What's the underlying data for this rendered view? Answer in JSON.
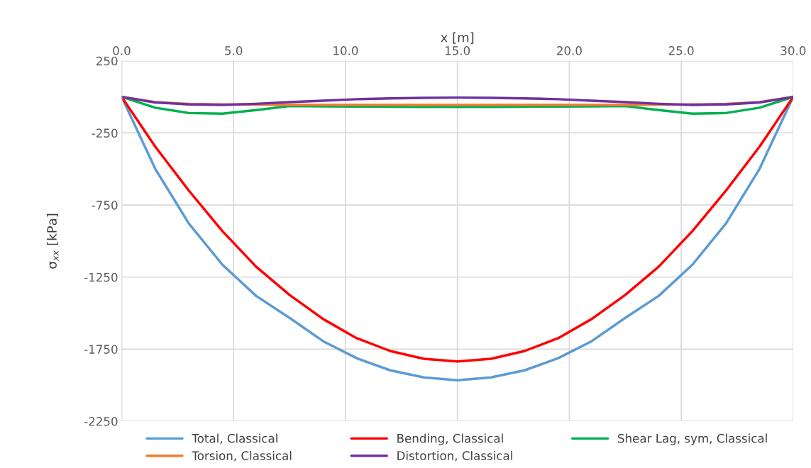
{
  "chart_data": {
    "type": "line",
    "xlabel": "x [m]",
    "ylabel": "σ$_{xx}$ [kPa]",
    "x": [
      0,
      1.5,
      3,
      4.5,
      6,
      7.5,
      9,
      10.5,
      12,
      13.5,
      15,
      16.5,
      18,
      19.5,
      21,
      22.5,
      24,
      25.5,
      27,
      28.5,
      30
    ],
    "series": [
      {
        "name": "Total, Classical",
        "color": "#5b9bd5",
        "values": [
          0,
          -499,
          -878,
          -1164,
          -1380,
          -1533,
          -1695,
          -1813,
          -1897,
          -1946,
          -1966,
          -1946,
          -1897,
          -1813,
          -1695,
          -1533,
          -1380,
          -1164,
          -878,
          -499,
          0
        ]
      },
      {
        "name": "Bending, Classical",
        "color": "#ff0000",
        "values": [
          0,
          -345,
          -650,
          -931,
          -1177,
          -1374,
          -1541,
          -1674,
          -1763,
          -1817,
          -1836,
          -1817,
          -1763,
          -1674,
          -1541,
          -1374,
          -1177,
          -931,
          -650,
          -345,
          0
        ]
      },
      {
        "name": "Shear Lag, sym, Classical",
        "color": "#00b050",
        "values": [
          0,
          -75,
          -112,
          -116,
          -92,
          -64,
          -66,
          -67,
          -68,
          -69,
          -70,
          -69,
          -68,
          -67,
          -66,
          -64,
          -92,
          -116,
          -112,
          -75,
          0
        ]
      },
      {
        "name": "Torsion, Classical",
        "color": "#ed7d31",
        "values": [
          0,
          -36,
          -49,
          -52,
          -54,
          -56,
          -56,
          -56,
          -56,
          -56,
          -56,
          -56,
          -56,
          -56,
          -56,
          -56,
          -54,
          -52,
          -49,
          -36,
          0
        ]
      },
      {
        "name": "Distortion, Classical",
        "color": "#7030a0",
        "values": [
          0,
          -39,
          -52,
          -56,
          -48,
          -36,
          -26,
          -16,
          -10,
          -7,
          -5,
          -7,
          -10,
          -16,
          -26,
          -36,
          -48,
          -56,
          -52,
          -39,
          0
        ]
      }
    ],
    "xlim": [
      0,
      30
    ],
    "xticks": [
      {
        "value": 0,
        "label": "0.0"
      },
      {
        "value": 5,
        "label": "5.0"
      },
      {
        "value": 10,
        "label": "10.0"
      },
      {
        "value": 15,
        "label": "15.0"
      },
      {
        "value": 20,
        "label": "20.0"
      },
      {
        "value": 25,
        "label": "25.0"
      },
      {
        "value": 30,
        "label": "30.0"
      }
    ],
    "ylim": [
      -2250,
      250
    ],
    "yticks": [
      -2250,
      -1750,
      -1250,
      -750,
      -250,
      250
    ],
    "grid": true,
    "legend": "bottom",
    "marker": "none",
    "line_style": "solid"
  }
}
